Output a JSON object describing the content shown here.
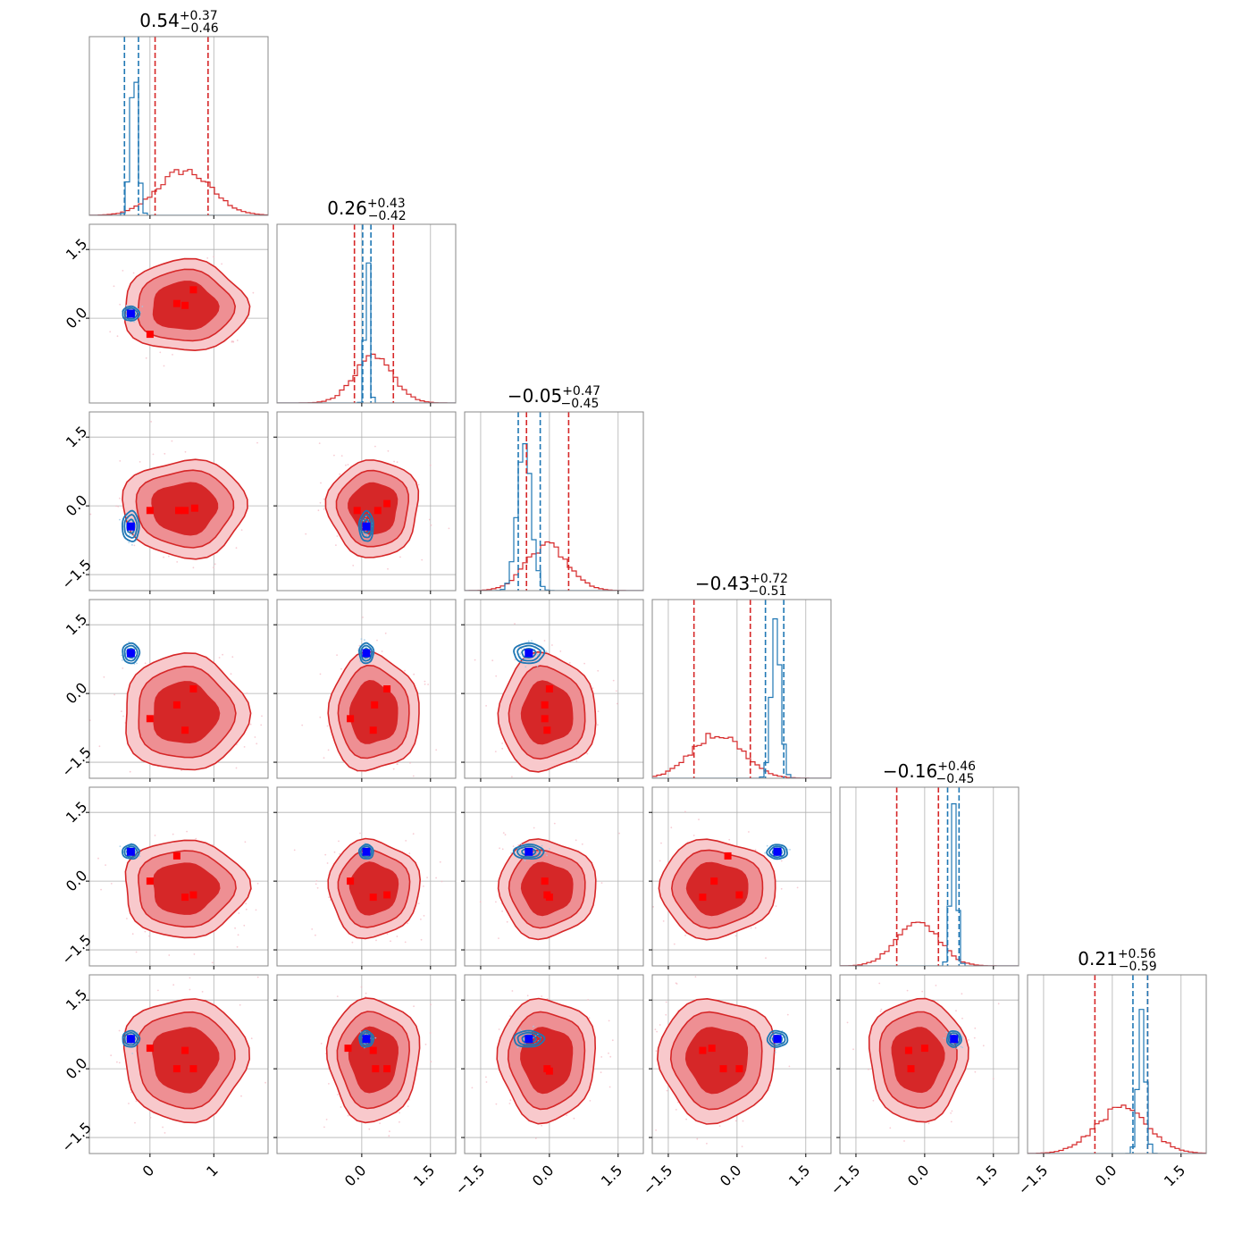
{
  "chart_data": {
    "type": "corner",
    "n_params": 6,
    "series": [
      {
        "name": "",
        "color": "#d62728",
        "medians": [
          0.54,
          0.26,
          -0.05,
          -0.43,
          -0.16,
          0.21
        ],
        "q16": [
          0.08,
          -0.16,
          -0.5,
          -0.94,
          -0.61,
          -0.38
        ],
        "q84": [
          0.91,
          0.69,
          0.42,
          0.29,
          0.3,
          0.77
        ],
        "sigma": [
          0.42,
          0.43,
          0.46,
          0.55,
          0.46,
          0.58
        ]
      },
      {
        "name": "",
        "color": "#1f77b4",
        "medians": [
          -0.25,
          0.12,
          -0.55,
          0.85,
          0.63,
          0.64
        ],
        "q16": [
          -0.4,
          0.02,
          -0.68,
          0.62,
          0.5,
          0.45
        ],
        "q84": [
          -0.18,
          0.2,
          -0.2,
          1.02,
          0.75,
          0.77
        ],
        "sigma": [
          0.06,
          0.05,
          0.15,
          0.1,
          0.07,
          0.08
        ]
      }
    ],
    "truths_blue": [
      -0.3,
      0.1,
      -0.45,
      0.88,
      0.64,
      0.65
    ],
    "red_markers": [
      {
        "row": 1,
        "col": 0,
        "points": [
          [
            0.68,
            0.62
          ],
          [
            0.42,
            0.32
          ],
          [
            0.55,
            0.28
          ],
          [
            0.0,
            -0.35
          ]
        ]
      },
      {
        "row": 2,
        "col": 0,
        "points": [
          [
            0.0,
            -0.1
          ],
          [
            0.45,
            -0.1
          ],
          [
            0.55,
            -0.1
          ],
          [
            0.7,
            -0.05
          ]
        ]
      },
      {
        "row": 2,
        "col": 1,
        "points": [
          [
            -0.1,
            -0.1
          ],
          [
            0.35,
            -0.1
          ],
          [
            0.55,
            0.05
          ]
        ]
      },
      {
        "row": 3,
        "col": 0,
        "points": [
          [
            0.68,
            0.1
          ],
          [
            0.42,
            -0.25
          ],
          [
            0.0,
            -0.55
          ],
          [
            0.55,
            -0.8
          ]
        ]
      },
      {
        "row": 3,
        "col": 1,
        "points": [
          [
            0.55,
            0.1
          ],
          [
            0.28,
            -0.25
          ],
          [
            -0.25,
            -0.55
          ],
          [
            0.25,
            -0.8
          ]
        ]
      },
      {
        "row": 3,
        "col": 2,
        "points": [
          [
            0.0,
            0.1
          ],
          [
            -0.1,
            -0.25
          ],
          [
            -0.1,
            -0.55
          ],
          [
            -0.05,
            -0.8
          ]
        ]
      },
      {
        "row": 4,
        "col": 0,
        "points": [
          [
            0.42,
            0.55
          ],
          [
            0.0,
            0.0
          ],
          [
            0.55,
            -0.35
          ],
          [
            0.68,
            -0.3
          ]
        ]
      },
      {
        "row": 4,
        "col": 1,
        "points": [
          [
            -0.25,
            0.0
          ],
          [
            0.55,
            -0.3
          ],
          [
            0.25,
            -0.35
          ]
        ]
      },
      {
        "row": 4,
        "col": 2,
        "points": [
          [
            -0.1,
            0.0
          ],
          [
            -0.05,
            -0.3
          ],
          [
            0.0,
            -0.35
          ]
        ]
      },
      {
        "row": 4,
        "col": 3,
        "points": [
          [
            -0.2,
            0.55
          ],
          [
            -0.5,
            0.0
          ],
          [
            -0.75,
            -0.35
          ],
          [
            0.05,
            -0.3
          ]
        ]
      },
      {
        "row": 5,
        "col": 0,
        "points": [
          [
            0.0,
            0.45
          ],
          [
            0.55,
            0.4
          ],
          [
            0.42,
            0.0
          ],
          [
            0.68,
            0.0
          ]
        ]
      },
      {
        "row": 5,
        "col": 1,
        "points": [
          [
            -0.3,
            0.45
          ],
          [
            0.25,
            0.4
          ],
          [
            0.3,
            0.0
          ],
          [
            0.55,
            0.0
          ]
        ]
      },
      {
        "row": 5,
        "col": 2,
        "points": [
          [
            -0.05,
            0.0
          ],
          [
            0.0,
            -0.05
          ]
        ]
      },
      {
        "row": 5,
        "col": 3,
        "points": [
          [
            -0.75,
            0.4
          ],
          [
            -0.55,
            0.45
          ],
          [
            -0.3,
            0.0
          ],
          [
            0.05,
            0.0
          ]
        ]
      },
      {
        "row": 5,
        "col": 4,
        "points": [
          [
            -0.35,
            0.4
          ],
          [
            0.0,
            0.45
          ],
          [
            -0.3,
            0.0
          ]
        ]
      }
    ],
    "ranges": [
      [
        -0.95,
        1.85
      ],
      [
        -1.85,
        2.05
      ],
      [
        -1.85,
        2.05
      ],
      [
        -1.85,
        2.05
      ],
      [
        -1.85,
        2.05
      ],
      [
        -1.85,
        2.05
      ]
    ],
    "xtick_labels": [
      [
        "0",
        "1"
      ],
      [
        "0.0",
        "1.5"
      ],
      [
        "−1.5",
        "0.0",
        "1.5"
      ],
      [
        "−1.5",
        "0.0",
        "1.5"
      ],
      [
        "−1.5",
        "0.0",
        "1.5"
      ],
      [
        "−1.5",
        "0.0",
        "1.5"
      ]
    ],
    "ytick_labels": [
      [],
      [
        "0.0",
        "1.5"
      ],
      [
        "−1.5",
        "0.0",
        "1.5"
      ],
      [
        "−1.5",
        "0.0",
        "1.5"
      ],
      [
        "−1.5",
        "0.0",
        "1.5"
      ],
      [
        "−1.5",
        "0.0",
        "1.5"
      ]
    ],
    "titles": [
      {
        "value": "0.54",
        "plus": "+0.37",
        "minus": "−0.46"
      },
      {
        "value": "0.26",
        "plus": "+0.43",
        "minus": "−0.42"
      },
      {
        "value": "−0.05",
        "plus": "+0.47",
        "minus": "−0.45"
      },
      {
        "value": "−0.43",
        "plus": "+0.72",
        "minus": "−0.51"
      },
      {
        "value": "−0.16",
        "plus": "+0.46",
        "minus": "−0.45"
      },
      {
        "value": "0.21",
        "plus": "+0.56",
        "minus": "−0.59"
      }
    ],
    "grid": true
  }
}
